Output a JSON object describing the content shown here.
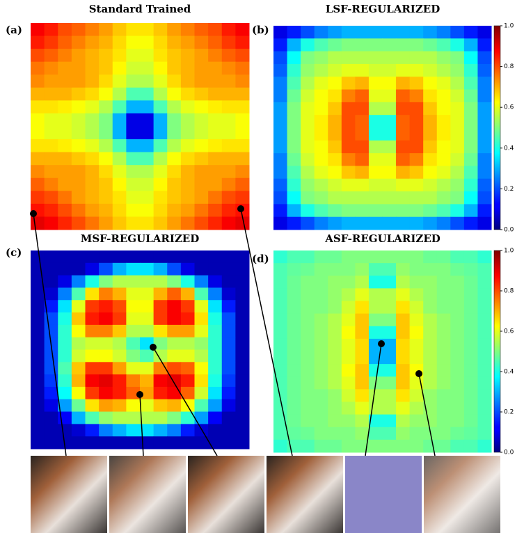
{
  "chart_data": [
    {
      "type": "heatmap",
      "title": "Standard Trained",
      "panel_label": "(a)",
      "colormap": "jet",
      "zlim": [
        0,
        1
      ],
      "z": [
        [
          0.88,
          0.85,
          0.8,
          0.78,
          0.75,
          0.72,
          0.68,
          0.65,
          0.65,
          0.68,
          0.72,
          0.75,
          0.78,
          0.8,
          0.85,
          0.88
        ],
        [
          0.85,
          0.82,
          0.78,
          0.75,
          0.72,
          0.7,
          0.66,
          0.62,
          0.62,
          0.66,
          0.7,
          0.72,
          0.75,
          0.78,
          0.82,
          0.85
        ],
        [
          0.8,
          0.78,
          0.75,
          0.72,
          0.7,
          0.68,
          0.65,
          0.6,
          0.6,
          0.65,
          0.68,
          0.7,
          0.72,
          0.75,
          0.78,
          0.8
        ],
        [
          0.76,
          0.74,
          0.72,
          0.72,
          0.7,
          0.68,
          0.63,
          0.58,
          0.58,
          0.63,
          0.68,
          0.7,
          0.72,
          0.72,
          0.74,
          0.76
        ],
        [
          0.74,
          0.72,
          0.72,
          0.72,
          0.7,
          0.66,
          0.6,
          0.55,
          0.55,
          0.6,
          0.66,
          0.7,
          0.72,
          0.72,
          0.72,
          0.74
        ],
        [
          0.7,
          0.7,
          0.7,
          0.68,
          0.66,
          0.62,
          0.55,
          0.45,
          0.45,
          0.55,
          0.62,
          0.66,
          0.68,
          0.7,
          0.7,
          0.7
        ],
        [
          0.65,
          0.65,
          0.64,
          0.62,
          0.6,
          0.55,
          0.45,
          0.3,
          0.3,
          0.45,
          0.55,
          0.6,
          0.62,
          0.64,
          0.65,
          0.65
        ],
        [
          0.62,
          0.6,
          0.6,
          0.58,
          0.55,
          0.5,
          0.3,
          0.1,
          0.1,
          0.3,
          0.5,
          0.55,
          0.58,
          0.6,
          0.6,
          0.62
        ],
        [
          0.62,
          0.6,
          0.6,
          0.58,
          0.55,
          0.5,
          0.3,
          0.1,
          0.1,
          0.3,
          0.5,
          0.55,
          0.58,
          0.6,
          0.6,
          0.62
        ],
        [
          0.65,
          0.65,
          0.64,
          0.62,
          0.6,
          0.55,
          0.45,
          0.3,
          0.3,
          0.45,
          0.55,
          0.6,
          0.62,
          0.64,
          0.65,
          0.65
        ],
        [
          0.7,
          0.7,
          0.7,
          0.68,
          0.66,
          0.62,
          0.55,
          0.45,
          0.45,
          0.55,
          0.62,
          0.66,
          0.68,
          0.7,
          0.7,
          0.7
        ],
        [
          0.74,
          0.72,
          0.72,
          0.72,
          0.7,
          0.66,
          0.6,
          0.55,
          0.55,
          0.6,
          0.66,
          0.7,
          0.72,
          0.72,
          0.72,
          0.74
        ],
        [
          0.78,
          0.75,
          0.72,
          0.72,
          0.7,
          0.68,
          0.63,
          0.58,
          0.58,
          0.63,
          0.68,
          0.7,
          0.72,
          0.72,
          0.75,
          0.78
        ],
        [
          0.82,
          0.8,
          0.76,
          0.72,
          0.7,
          0.68,
          0.65,
          0.6,
          0.6,
          0.65,
          0.68,
          0.7,
          0.72,
          0.76,
          0.8,
          0.82
        ],
        [
          0.86,
          0.84,
          0.8,
          0.76,
          0.72,
          0.7,
          0.66,
          0.62,
          0.62,
          0.66,
          0.7,
          0.72,
          0.76,
          0.8,
          0.84,
          0.86
        ],
        [
          0.9,
          0.88,
          0.84,
          0.8,
          0.76,
          0.72,
          0.68,
          0.65,
          0.65,
          0.68,
          0.72,
          0.76,
          0.8,
          0.84,
          0.88,
          0.9
        ]
      ]
    },
    {
      "type": "heatmap",
      "title": "LSF-REGULARIZED",
      "panel_label": "(b)",
      "colormap": "jet",
      "zlim": [
        0,
        1
      ],
      "colorbar_ticks": [
        {
          "value": 0,
          "label": "0.0"
        },
        0.2,
        0.4,
        0.6,
        0.8,
        {
          "value": 1,
          "label": "1.0"
        }
      ],
      "z": [
        [
          0.1,
          0.15,
          0.2,
          0.25,
          0.28,
          0.3,
          0.3,
          0.3,
          0.3,
          0.3,
          0.3,
          0.28,
          0.25,
          0.2,
          0.15,
          0.1
        ],
        [
          0.15,
          0.3,
          0.4,
          0.45,
          0.48,
          0.5,
          0.5,
          0.5,
          0.5,
          0.5,
          0.5,
          0.48,
          0.45,
          0.4,
          0.3,
          0.15
        ],
        [
          0.2,
          0.38,
          0.5,
          0.52,
          0.55,
          0.55,
          0.55,
          0.55,
          0.55,
          0.55,
          0.55,
          0.55,
          0.52,
          0.5,
          0.38,
          0.2
        ],
        [
          0.22,
          0.42,
          0.52,
          0.55,
          0.58,
          0.6,
          0.6,
          0.58,
          0.58,
          0.6,
          0.6,
          0.58,
          0.55,
          0.52,
          0.42,
          0.22
        ],
        [
          0.25,
          0.45,
          0.55,
          0.6,
          0.62,
          0.68,
          0.7,
          0.62,
          0.62,
          0.7,
          0.68,
          0.62,
          0.6,
          0.55,
          0.45,
          0.25
        ],
        [
          0.25,
          0.48,
          0.58,
          0.62,
          0.65,
          0.75,
          0.78,
          0.6,
          0.6,
          0.78,
          0.75,
          0.65,
          0.62,
          0.58,
          0.48,
          0.25
        ],
        [
          0.28,
          0.5,
          0.6,
          0.62,
          0.68,
          0.8,
          0.8,
          0.55,
          0.55,
          0.8,
          0.8,
          0.68,
          0.62,
          0.6,
          0.5,
          0.28
        ],
        [
          0.28,
          0.5,
          0.6,
          0.64,
          0.7,
          0.8,
          0.78,
          0.4,
          0.4,
          0.78,
          0.8,
          0.7,
          0.64,
          0.6,
          0.5,
          0.28
        ],
        [
          0.28,
          0.5,
          0.6,
          0.64,
          0.7,
          0.8,
          0.78,
          0.4,
          0.4,
          0.78,
          0.8,
          0.7,
          0.64,
          0.6,
          0.5,
          0.28
        ],
        [
          0.28,
          0.5,
          0.6,
          0.62,
          0.68,
          0.8,
          0.8,
          0.55,
          0.55,
          0.8,
          0.8,
          0.68,
          0.62,
          0.6,
          0.5,
          0.28
        ],
        [
          0.25,
          0.48,
          0.58,
          0.62,
          0.65,
          0.75,
          0.78,
          0.6,
          0.6,
          0.78,
          0.75,
          0.65,
          0.62,
          0.58,
          0.48,
          0.25
        ],
        [
          0.25,
          0.45,
          0.55,
          0.6,
          0.62,
          0.68,
          0.7,
          0.62,
          0.62,
          0.7,
          0.68,
          0.62,
          0.6,
          0.55,
          0.45,
          0.25
        ],
        [
          0.22,
          0.42,
          0.52,
          0.55,
          0.58,
          0.6,
          0.6,
          0.58,
          0.58,
          0.6,
          0.6,
          0.58,
          0.55,
          0.52,
          0.42,
          0.22
        ],
        [
          0.2,
          0.38,
          0.5,
          0.52,
          0.55,
          0.55,
          0.55,
          0.55,
          0.55,
          0.55,
          0.55,
          0.55,
          0.52,
          0.5,
          0.38,
          0.2
        ],
        [
          0.15,
          0.3,
          0.4,
          0.45,
          0.48,
          0.5,
          0.5,
          0.5,
          0.5,
          0.5,
          0.5,
          0.48,
          0.45,
          0.4,
          0.3,
          0.15
        ],
        [
          0.1,
          0.15,
          0.2,
          0.25,
          0.28,
          0.3,
          0.3,
          0.3,
          0.3,
          0.3,
          0.3,
          0.28,
          0.25,
          0.2,
          0.15,
          0.1
        ]
      ]
    },
    {
      "type": "heatmap",
      "title": "MSF-REGULARIZED",
      "panel_label": "(c)",
      "colormap": "jet",
      "zlim": [
        0,
        1
      ],
      "z": [
        [
          0.05,
          0.05,
          0.05,
          0.05,
          0.05,
          0.05,
          0.05,
          0.05,
          0.05,
          0.05,
          0.05,
          0.05,
          0.05,
          0.05,
          0.05,
          0.05
        ],
        [
          0.05,
          0.05,
          0.05,
          0.05,
          0.1,
          0.2,
          0.3,
          0.35,
          0.35,
          0.3,
          0.2,
          0.1,
          0.05,
          0.05,
          0.05,
          0.05
        ],
        [
          0.05,
          0.05,
          0.1,
          0.25,
          0.4,
          0.5,
          0.55,
          0.55,
          0.55,
          0.55,
          0.5,
          0.4,
          0.25,
          0.1,
          0.05,
          0.05
        ],
        [
          0.05,
          0.08,
          0.25,
          0.45,
          0.65,
          0.75,
          0.7,
          0.6,
          0.6,
          0.7,
          0.78,
          0.7,
          0.45,
          0.25,
          0.08,
          0.05
        ],
        [
          0.05,
          0.15,
          0.35,
          0.6,
          0.82,
          0.85,
          0.8,
          0.62,
          0.62,
          0.82,
          0.88,
          0.82,
          0.6,
          0.35,
          0.15,
          0.05
        ],
        [
          0.05,
          0.2,
          0.4,
          0.68,
          0.85,
          0.88,
          0.82,
          0.6,
          0.6,
          0.82,
          0.88,
          0.85,
          0.65,
          0.4,
          0.2,
          0.05
        ],
        [
          0.05,
          0.2,
          0.42,
          0.62,
          0.75,
          0.75,
          0.68,
          0.55,
          0.55,
          0.65,
          0.72,
          0.72,
          0.6,
          0.42,
          0.2,
          0.05
        ],
        [
          0.05,
          0.2,
          0.42,
          0.55,
          0.58,
          0.58,
          0.55,
          0.45,
          0.35,
          0.5,
          0.55,
          0.55,
          0.52,
          0.42,
          0.2,
          0.05
        ],
        [
          0.05,
          0.2,
          0.42,
          0.58,
          0.62,
          0.62,
          0.58,
          0.5,
          0.45,
          0.55,
          0.6,
          0.6,
          0.55,
          0.42,
          0.2,
          0.05
        ],
        [
          0.05,
          0.2,
          0.45,
          0.68,
          0.82,
          0.82,
          0.72,
          0.6,
          0.6,
          0.75,
          0.8,
          0.78,
          0.62,
          0.42,
          0.2,
          0.05
        ],
        [
          0.05,
          0.18,
          0.42,
          0.7,
          0.88,
          0.9,
          0.85,
          0.75,
          0.7,
          0.88,
          0.9,
          0.85,
          0.65,
          0.4,
          0.18,
          0.05
        ],
        [
          0.05,
          0.15,
          0.38,
          0.62,
          0.82,
          0.88,
          0.85,
          0.78,
          0.72,
          0.85,
          0.88,
          0.78,
          0.58,
          0.35,
          0.15,
          0.05
        ],
        [
          0.05,
          0.1,
          0.28,
          0.48,
          0.65,
          0.72,
          0.7,
          0.62,
          0.6,
          0.68,
          0.7,
          0.62,
          0.45,
          0.28,
          0.1,
          0.05
        ],
        [
          0.05,
          0.05,
          0.12,
          0.3,
          0.45,
          0.52,
          0.55,
          0.55,
          0.55,
          0.55,
          0.5,
          0.42,
          0.28,
          0.12,
          0.05,
          0.05
        ],
        [
          0.05,
          0.05,
          0.05,
          0.08,
          0.15,
          0.25,
          0.3,
          0.35,
          0.35,
          0.3,
          0.25,
          0.15,
          0.08,
          0.05,
          0.05,
          0.05
        ],
        [
          0.05,
          0.05,
          0.05,
          0.05,
          0.05,
          0.05,
          0.05,
          0.05,
          0.05,
          0.05,
          0.05,
          0.05,
          0.05,
          0.05,
          0.05,
          0.05
        ]
      ]
    },
    {
      "type": "heatmap",
      "title": "ASF-REGULARIZED",
      "panel_label": "(d)",
      "colormap": "jet",
      "zlim": [
        0,
        1
      ],
      "colorbar_ticks": [
        {
          "value": 0,
          "label": "0.0"
        },
        0.2,
        0.4,
        0.6,
        0.8,
        {
          "value": 1,
          "label": "1.0"
        }
      ],
      "z": [
        [
          0.42,
          0.45,
          0.45,
          0.48,
          0.48,
          0.5,
          0.5,
          0.5,
          0.5,
          0.5,
          0.5,
          0.48,
          0.48,
          0.45,
          0.45,
          0.42
        ],
        [
          0.45,
          0.47,
          0.48,
          0.5,
          0.5,
          0.5,
          0.52,
          0.45,
          0.45,
          0.52,
          0.5,
          0.5,
          0.5,
          0.48,
          0.47,
          0.45
        ],
        [
          0.45,
          0.48,
          0.5,
          0.5,
          0.52,
          0.52,
          0.55,
          0.4,
          0.4,
          0.55,
          0.52,
          0.52,
          0.5,
          0.5,
          0.48,
          0.45
        ],
        [
          0.45,
          0.48,
          0.5,
          0.5,
          0.52,
          0.55,
          0.6,
          0.55,
          0.55,
          0.6,
          0.55,
          0.52,
          0.5,
          0.5,
          0.48,
          0.45
        ],
        [
          0.45,
          0.48,
          0.5,
          0.5,
          0.52,
          0.58,
          0.65,
          0.55,
          0.55,
          0.65,
          0.58,
          0.52,
          0.5,
          0.5,
          0.48,
          0.45
        ],
        [
          0.45,
          0.48,
          0.5,
          0.52,
          0.55,
          0.6,
          0.68,
          0.5,
          0.5,
          0.68,
          0.6,
          0.55,
          0.52,
          0.5,
          0.48,
          0.45
        ],
        [
          0.45,
          0.48,
          0.5,
          0.52,
          0.55,
          0.62,
          0.68,
          0.4,
          0.4,
          0.68,
          0.62,
          0.55,
          0.52,
          0.5,
          0.48,
          0.45
        ],
        [
          0.45,
          0.48,
          0.5,
          0.52,
          0.55,
          0.6,
          0.66,
          0.3,
          0.3,
          0.66,
          0.6,
          0.55,
          0.52,
          0.5,
          0.48,
          0.45
        ],
        [
          0.45,
          0.48,
          0.5,
          0.52,
          0.55,
          0.6,
          0.66,
          0.3,
          0.3,
          0.66,
          0.6,
          0.55,
          0.52,
          0.5,
          0.48,
          0.45
        ],
        [
          0.45,
          0.48,
          0.5,
          0.52,
          0.55,
          0.62,
          0.68,
          0.4,
          0.4,
          0.68,
          0.62,
          0.55,
          0.52,
          0.5,
          0.48,
          0.45
        ],
        [
          0.45,
          0.48,
          0.5,
          0.52,
          0.55,
          0.6,
          0.68,
          0.5,
          0.5,
          0.68,
          0.6,
          0.55,
          0.52,
          0.5,
          0.48,
          0.45
        ],
        [
          0.45,
          0.48,
          0.5,
          0.5,
          0.52,
          0.58,
          0.65,
          0.55,
          0.55,
          0.65,
          0.58,
          0.52,
          0.5,
          0.5,
          0.48,
          0.45
        ],
        [
          0.45,
          0.48,
          0.5,
          0.5,
          0.52,
          0.55,
          0.6,
          0.55,
          0.55,
          0.6,
          0.55,
          0.52,
          0.5,
          0.5,
          0.48,
          0.45
        ],
        [
          0.45,
          0.48,
          0.5,
          0.5,
          0.52,
          0.52,
          0.55,
          0.4,
          0.4,
          0.55,
          0.52,
          0.52,
          0.5,
          0.5,
          0.48,
          0.45
        ],
        [
          0.45,
          0.47,
          0.48,
          0.5,
          0.5,
          0.5,
          0.52,
          0.45,
          0.45,
          0.52,
          0.5,
          0.5,
          0.5,
          0.48,
          0.47,
          0.45
        ],
        [
          0.42,
          0.45,
          0.45,
          0.48,
          0.48,
          0.5,
          0.5,
          0.5,
          0.5,
          0.5,
          0.5,
          0.48,
          0.48,
          0.45,
          0.45,
          0.42
        ]
      ]
    }
  ]
}
